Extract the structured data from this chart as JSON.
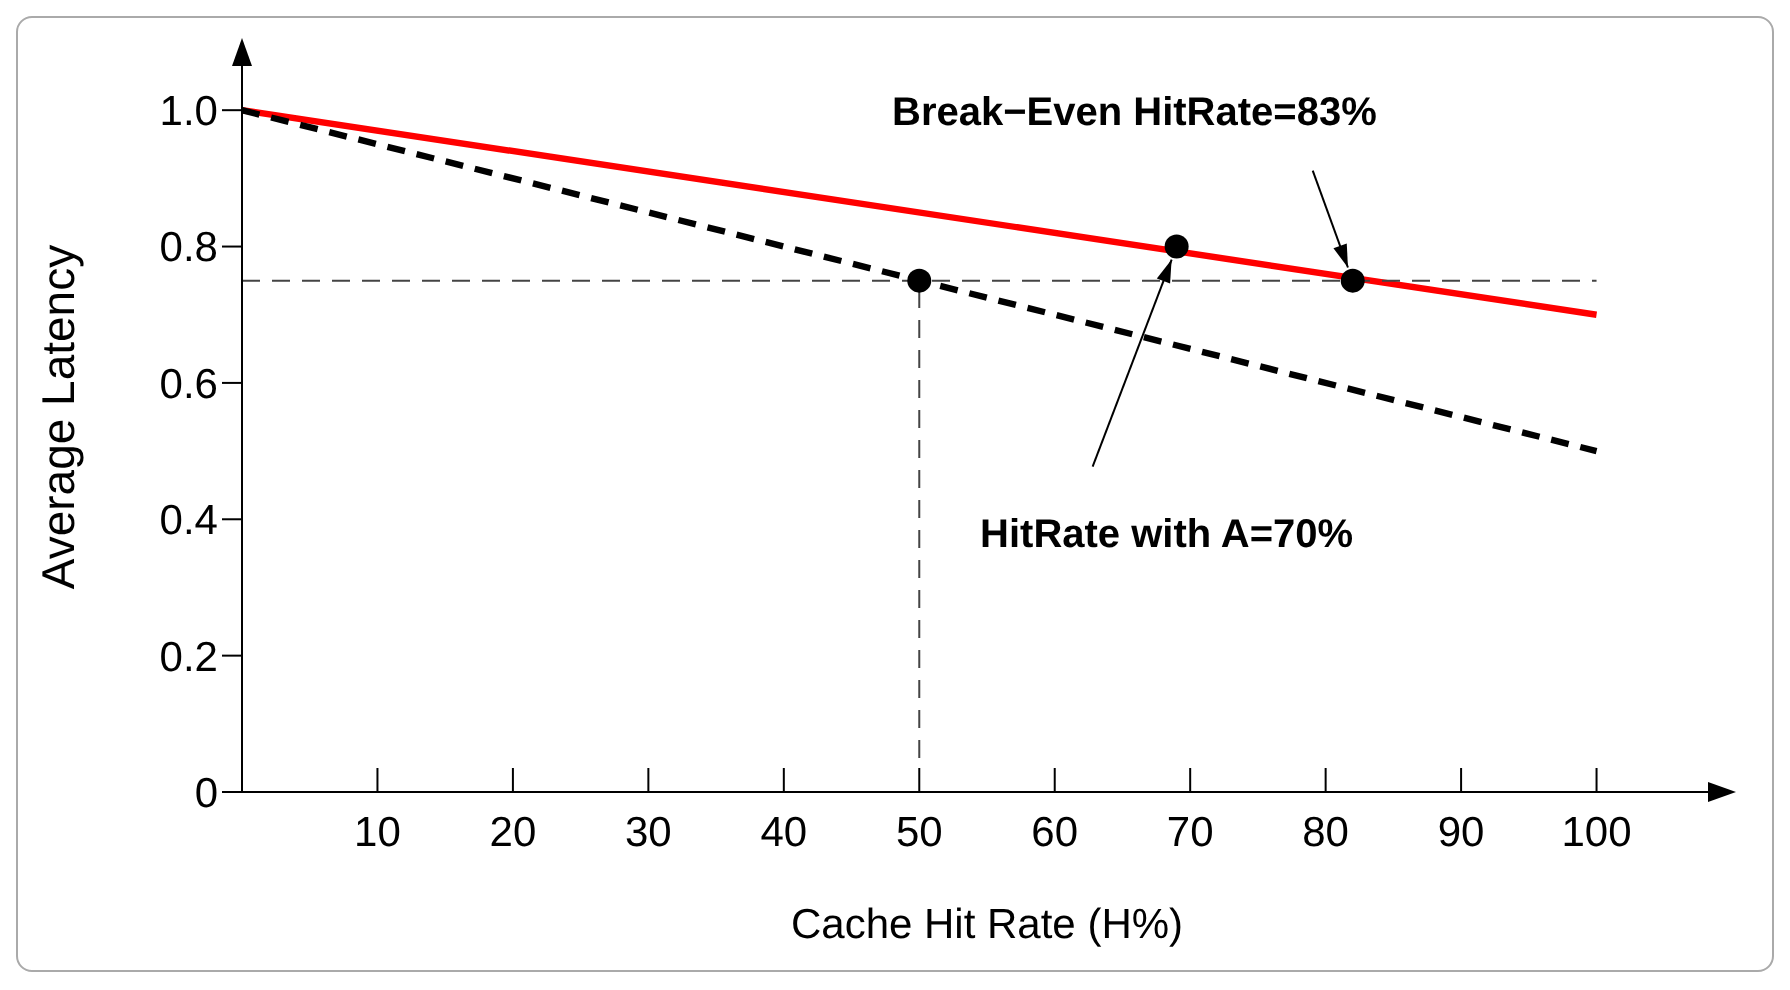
{
  "chart_data": {
    "type": "line",
    "xlabel": "Cache Hit Rate (H%)",
    "ylabel": "Average Latency",
    "xlim": [
      0,
      110
    ],
    "xticks": [
      10,
      20,
      30,
      40,
      50,
      60,
      70,
      80,
      90,
      100
    ],
    "ylim": [
      0,
      1.1
    ],
    "yticks": [
      {
        "value": 0,
        "label": "0"
      },
      0.2,
      0.4,
      0.6,
      0.8,
      {
        "value": 1,
        "label": "1.0"
      }
    ],
    "series": [
      {
        "color": "#ff0000",
        "line_style": "solid",
        "marker": "none",
        "x": [
          0,
          100
        ],
        "values": [
          1,
          0.7
        ]
      },
      {
        "color": "#000000",
        "line_style": "dashed",
        "marker": "none",
        "x": [
          0,
          100
        ],
        "values": [
          1,
          0.5
        ]
      },
      {
        "color": "#444444",
        "line_style": "dashed",
        "marker": "none",
        "x": [
          0,
          100
        ],
        "values": [
          0.75,
          0.75
        ]
      },
      {
        "color": "#444444",
        "line_style": "dashed",
        "marker": "none",
        "x": [
          50,
          50
        ],
        "values": [
          0.05,
          0.75
        ]
      },
      {
        "type": "scatter",
        "color": "#000000",
        "marker": "circle",
        "x": [
          50,
          69,
          82
        ],
        "values": [
          0.75,
          0.8,
          0.75
        ]
      }
    ],
    "annotations": [
      {
        "text": "Break−Even HitRate=83%",
        "x": 82,
        "y": 0.75
      },
      {
        "text": "HitRate with A=70%",
        "x": 69,
        "y": 0.8
      }
    ]
  }
}
